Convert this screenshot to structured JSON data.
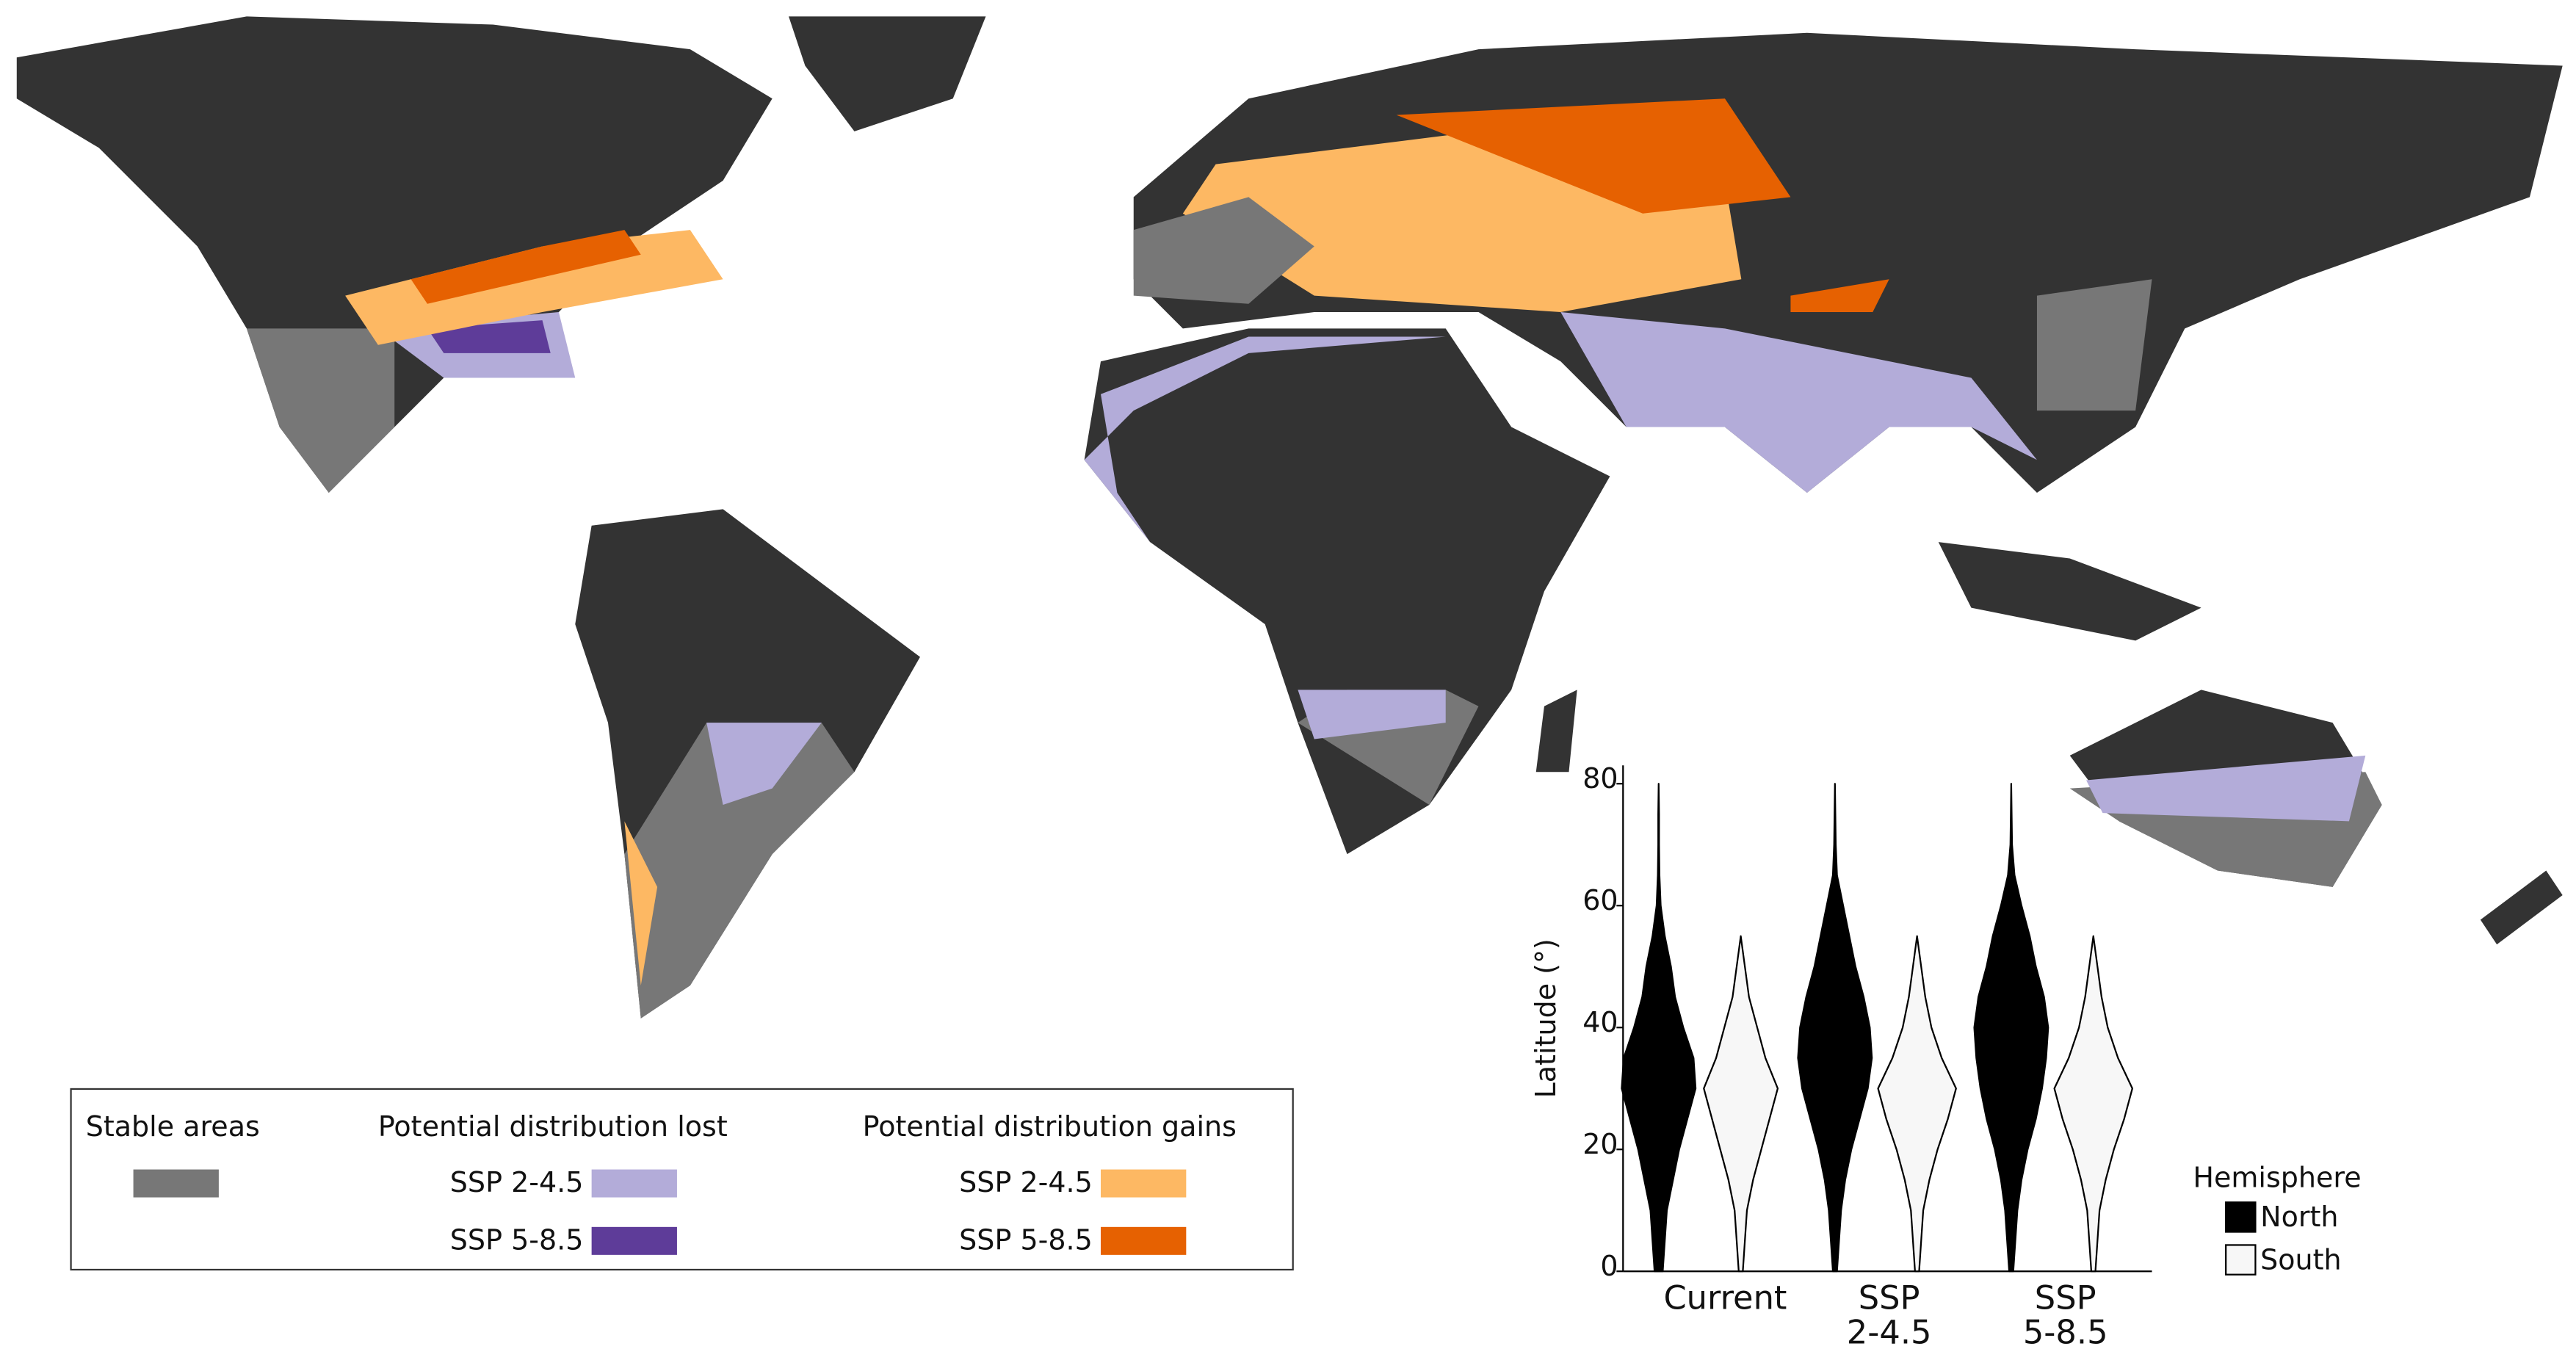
{
  "legend": {
    "stable": {
      "label": "Stable areas",
      "color": "#777777"
    },
    "lost": {
      "title": "Potential distribution lost",
      "items": [
        {
          "label": "SSP 2-4.5",
          "color": "#b3acd9"
        },
        {
          "label": "SSP 5-8.5",
          "color": "#5e3c99"
        }
      ]
    },
    "gains": {
      "title": "Potential distribution gains",
      "items": [
        {
          "label": "SSP 2-4.5",
          "color": "#fdb863"
        },
        {
          "label": "SSP 5-8.5",
          "color": "#e66101"
        }
      ]
    }
  },
  "chart_data": {
    "type": "violin",
    "y_label": "Latitude (°)",
    "categories": [
      "Current",
      "SSP 2-4.5",
      "SSP 5-8.5"
    ],
    "lat": [
      0,
      5,
      10,
      15,
      20,
      25,
      30,
      35,
      40,
      45,
      50,
      55,
      60,
      65,
      70,
      75,
      80
    ],
    "ylim": [
      0,
      83
    ],
    "yticks": [
      0,
      20,
      40,
      60,
      80
    ],
    "legend_title": "Hemisphere",
    "series": [
      {
        "name": "North",
        "color": "#000000",
        "density": [
          [
            0.1,
            0.15,
            0.2,
            0.35,
            0.5,
            0.7,
            0.9,
            0.85,
            0.6,
            0.4,
            0.3,
            0.15,
            0.05,
            0.02,
            0.01,
            0.01,
            0
          ],
          [
            0.05,
            0.1,
            0.15,
            0.25,
            0.4,
            0.6,
            0.8,
            0.9,
            0.85,
            0.7,
            0.5,
            0.35,
            0.2,
            0.05,
            0.02,
            0.01,
            0
          ],
          [
            0.05,
            0.1,
            0.15,
            0.25,
            0.4,
            0.6,
            0.75,
            0.85,
            0.9,
            0.8,
            0.6,
            0.45,
            0.25,
            0.08,
            0.02,
            0.01,
            0
          ]
        ]
      },
      {
        "name": "South",
        "color": "#f7f7f7",
        "density": [
          [
            0.05,
            0.1,
            0.15,
            0.3,
            0.5,
            0.7,
            0.9,
            0.6,
            0.4,
            0.2,
            0.1,
            0,
            null,
            null,
            null,
            null,
            null
          ],
          [
            0.05,
            0.1,
            0.15,
            0.3,
            0.5,
            0.75,
            0.95,
            0.6,
            0.35,
            0.2,
            0.1,
            0,
            null,
            null,
            null,
            null,
            null
          ],
          [
            0.05,
            0.1,
            0.15,
            0.3,
            0.5,
            0.75,
            0.95,
            0.6,
            0.35,
            0.2,
            0.1,
            0,
            null,
            null,
            null,
            null,
            null
          ]
        ]
      }
    ]
  }
}
